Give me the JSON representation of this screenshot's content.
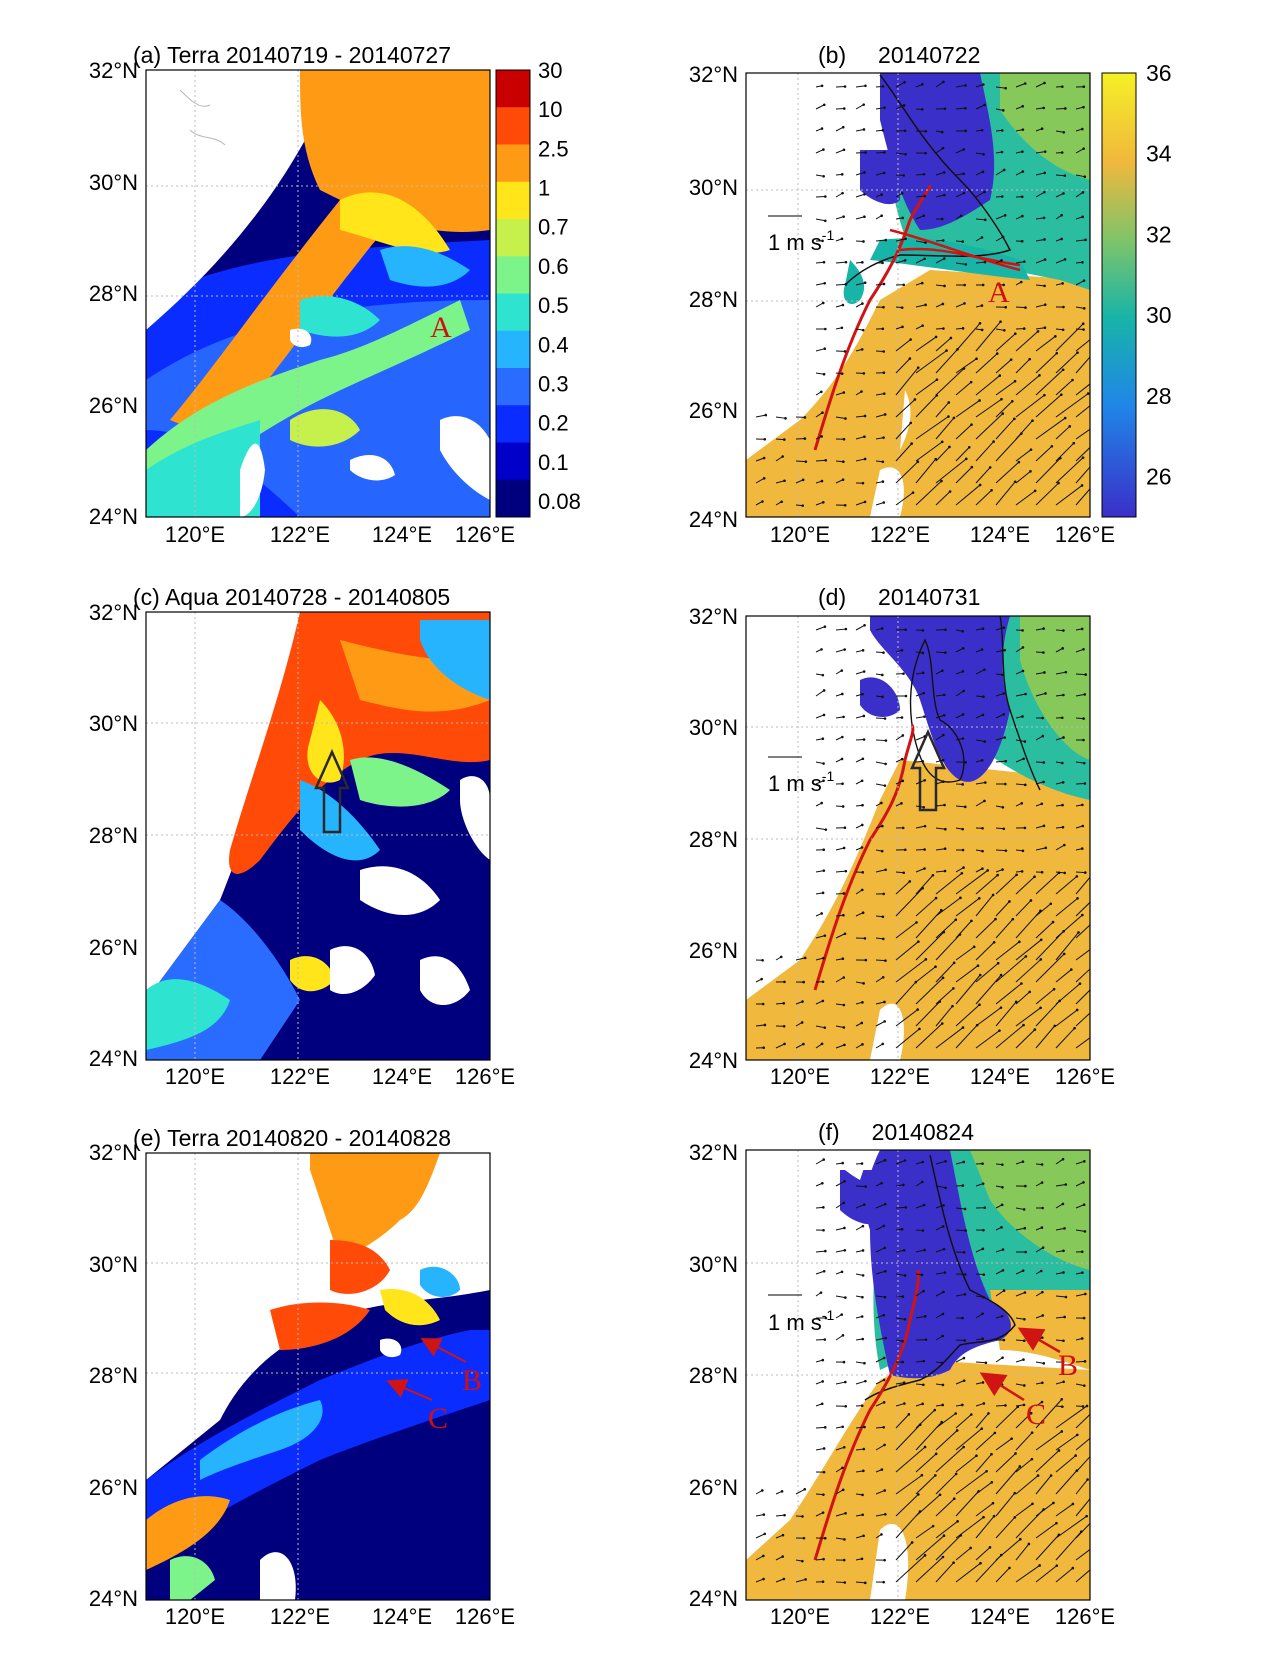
{
  "colors": {
    "chl": [
      "#00007f",
      "#0000c8",
      "#0a2cff",
      "#2a6cff",
      "#26b4ff",
      "#2fe3d1",
      "#7cf48a",
      "#c6f14c",
      "#ffe51a",
      "#ff9a14",
      "#ff4a08",
      "#c80000"
    ],
    "salinity": {
      "low": "#3b2fc9",
      "mid": "#18b4a8",
      "high": "#f0b83c",
      "top": "#f5f026"
    },
    "land_outline": "#b8b8b8",
    "front_line": "#d01414",
    "arrow_outline": "#2a2a2a"
  },
  "axes": {
    "lat_ticks": [
      "24°N",
      "26°N",
      "28°N",
      "30°N",
      "32°N"
    ],
    "lon_ticks": [
      "120°E",
      "122°E",
      "124°E",
      "126°E"
    ]
  },
  "colorbars": {
    "chl": {
      "labels": [
        "30",
        "10",
        "2.5",
        "1",
        "0.7",
        "0.6",
        "0.5",
        "0.4",
        "0.3",
        "0.2",
        "0.1",
        "0.08"
      ]
    },
    "salinity": {
      "labels": [
        "36",
        "34",
        "32",
        "30",
        "28",
        "26"
      ],
      "range": [
        25,
        36
      ]
    }
  },
  "panels": {
    "a": {
      "title": "(a) Terra 20140719 - 20140727",
      "label": "A"
    },
    "b": {
      "title": "(b)     20140722",
      "scale_label": "1 m s",
      "scale_exp": "-1",
      "label": "A"
    },
    "c": {
      "title": "(c) Aqua 20140728 - 20140805"
    },
    "d": {
      "title": "(d)     20140731",
      "scale_label": "1 m s",
      "scale_exp": "-1"
    },
    "e": {
      "title": "(e) Terra 20140820 - 20140828",
      "label_b": "B",
      "label_c": "C"
    },
    "f": {
      "title": "(f)     20140824",
      "scale_label": "1 m s",
      "scale_exp": "-1",
      "label_b": "B",
      "label_c": "C"
    }
  }
}
